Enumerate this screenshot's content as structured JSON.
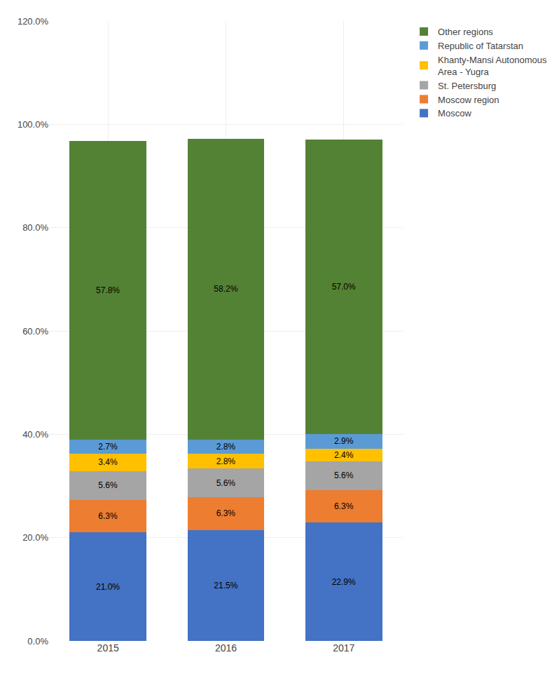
{
  "chart_data": {
    "type": "bar",
    "stacked": true,
    "data_labels": true,
    "grid": true,
    "legend": "right",
    "categories": [
      "2015",
      "2016",
      "2017"
    ],
    "series": [
      {
        "name": "Moscow",
        "color": "#4472C4",
        "values": [
          21.0,
          21.5,
          22.9
        ],
        "value_labels": [
          "21.0%",
          "21.5%",
          "22.9%"
        ]
      },
      {
        "name": "Moscow region",
        "color": "#ED7D31",
        "values": [
          6.3,
          6.3,
          6.3
        ],
        "value_labels": [
          "6.3%",
          "6.3%",
          "6.3%"
        ]
      },
      {
        "name": "St. Petersburg",
        "color": "#A5A5A5",
        "values": [
          5.6,
          5.6,
          5.6
        ],
        "value_labels": [
          "5.6%",
          "5.6%",
          "5.6%"
        ]
      },
      {
        "name": "Khanty-Mansi Autonomous\nArea - Yugra",
        "color": "#FFC000",
        "values": [
          3.4,
          2.8,
          2.4
        ],
        "value_labels": [
          "3.4%",
          "2.8%",
          "2.4%"
        ]
      },
      {
        "name": "Republic of Tatarstan",
        "color": "#5B9BD5",
        "values": [
          2.7,
          2.8,
          2.9
        ],
        "value_labels": [
          "2.7%",
          "2.8%",
          "2.9%"
        ]
      },
      {
        "name": "Other regions",
        "color": "#548235",
        "values": [
          57.8,
          58.2,
          57.0
        ],
        "value_labels": [
          "57.8%",
          "58.2%",
          "57.0%"
        ]
      }
    ],
    "ylim": [
      0,
      120
    ],
    "yticks": [
      {
        "value": 0,
        "label": "0.0%"
      },
      {
        "value": 20,
        "label": "20.0%"
      },
      {
        "value": 40,
        "label": "40.0%"
      },
      {
        "value": 60,
        "label": "60.0%"
      },
      {
        "value": 80,
        "label": "80.0%"
      },
      {
        "value": 100,
        "label": "100.0%"
      },
      {
        "value": 120,
        "label": "120.0%"
      }
    ]
  }
}
